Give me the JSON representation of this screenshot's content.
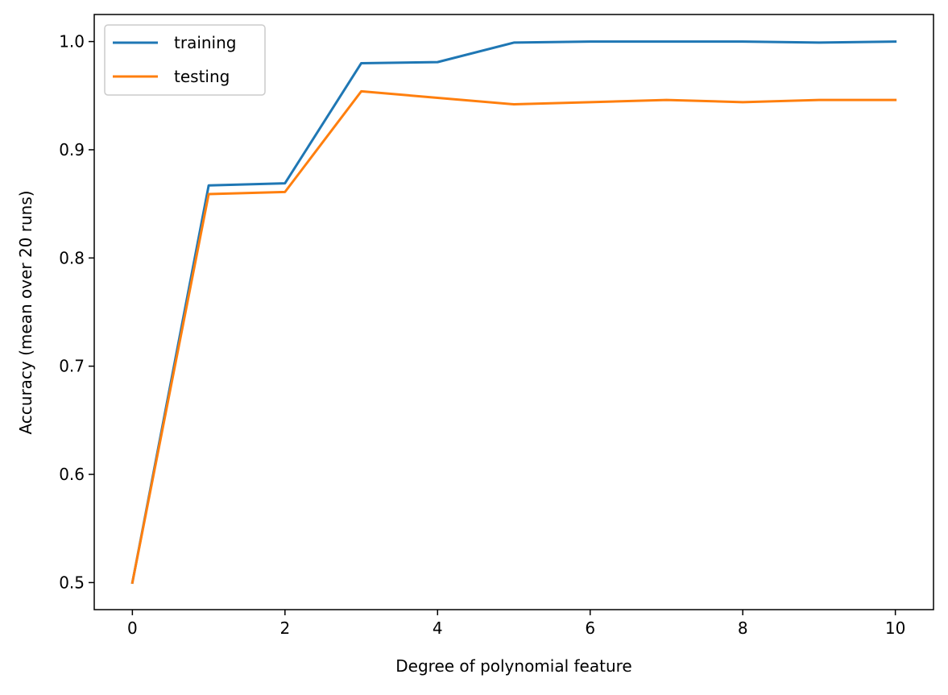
{
  "chart_data": {
    "type": "line",
    "title": "",
    "xlabel": "Degree of polynomial feature",
    "ylabel": "Accuracy (mean over 20 runs)",
    "xlim": [
      -0.5,
      10.5
    ],
    "ylim": [
      0.475,
      1.025
    ],
    "x_ticks": [
      0,
      2,
      4,
      6,
      8,
      10
    ],
    "y_ticks": [
      0.5,
      0.6,
      0.7,
      0.8,
      0.9,
      1.0
    ],
    "x_tick_labels": [
      "0",
      "2",
      "4",
      "6",
      "8",
      "10"
    ],
    "y_tick_labels": [
      "0.5",
      "0.6",
      "0.7",
      "0.8",
      "0.9",
      "1.0"
    ],
    "grid": false,
    "legend_position": "top-left",
    "x": [
      0,
      1,
      2,
      3,
      4,
      5,
      6,
      7,
      8,
      9,
      10
    ],
    "series": [
      {
        "name": "training",
        "color": "#1f77b4",
        "values": [
          0.5,
          0.867,
          0.869,
          0.98,
          0.981,
          0.999,
          1.0,
          1.0,
          1.0,
          0.999,
          1.0
        ]
      },
      {
        "name": "testing",
        "color": "#ff7f0e",
        "values": [
          0.5,
          0.859,
          0.861,
          0.954,
          0.948,
          0.942,
          0.944,
          0.946,
          0.944,
          0.946,
          0.946
        ]
      }
    ]
  }
}
